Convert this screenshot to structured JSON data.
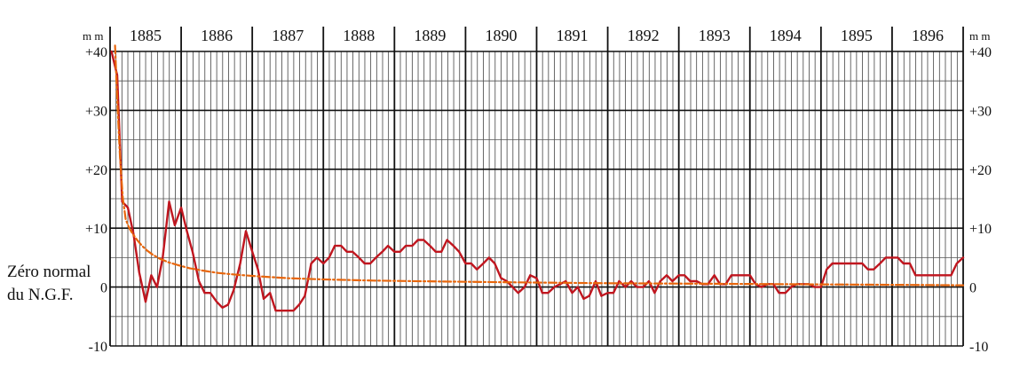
{
  "chart_data": {
    "type": "line",
    "years": [
      "1885",
      "1886",
      "1887",
      "1888",
      "1889",
      "1890",
      "1891",
      "1892",
      "1893",
      "1894",
      "1895",
      "1896"
    ],
    "xlim": [
      1885,
      1897
    ],
    "ylim": [
      -10,
      40
    ],
    "yticks": [
      40,
      30,
      20,
      10,
      0,
      -10
    ],
    "ytick_labels": [
      "+40",
      "+30",
      "+20",
      "+10",
      "0",
      "-10"
    ],
    "unit_left": "m m",
    "unit_right": "m m",
    "zero_label_line1": "Zéro normal",
    "zero_label_line2": "du N.G.F.",
    "grid": true,
    "minor_gridlines_per_year": 12,
    "series": [
      {
        "color": "#c0161f",
        "style": "solid",
        "x": [
          1885.02,
          1885.1,
          1885.17,
          1885.25,
          1885.33,
          1885.41,
          1885.5,
          1885.58,
          1885.66,
          1885.74,
          1885.83,
          1885.91,
          1886.0,
          1886.08,
          1886.16,
          1886.25,
          1886.33,
          1886.41,
          1886.5,
          1886.58,
          1886.66,
          1886.74,
          1886.83,
          1886.91,
          1887.0,
          1887.08,
          1887.16,
          1887.25,
          1887.33,
          1887.41,
          1887.5,
          1887.58,
          1887.66,
          1887.74,
          1887.83,
          1887.91,
          1888.0,
          1888.08,
          1888.16,
          1888.25,
          1888.33,
          1888.41,
          1888.5,
          1888.58,
          1888.66,
          1888.74,
          1888.83,
          1888.91,
          1889.0,
          1889.08,
          1889.16,
          1889.25,
          1889.33,
          1889.41,
          1889.5,
          1889.58,
          1889.66,
          1889.74,
          1889.83,
          1889.91,
          1890.0,
          1890.08,
          1890.16,
          1890.25,
          1890.33,
          1890.41,
          1890.5,
          1890.58,
          1890.66,
          1890.74,
          1890.83,
          1890.91,
          1891.0,
          1891.08,
          1891.16,
          1891.25,
          1891.33,
          1891.41,
          1891.5,
          1891.58,
          1891.66,
          1891.74,
          1891.83,
          1891.91,
          1892.0,
          1892.08,
          1892.16,
          1892.25,
          1892.33,
          1892.41,
          1892.5,
          1892.58,
          1892.66,
          1892.74,
          1892.83,
          1892.91,
          1893.0,
          1893.08,
          1893.16,
          1893.25,
          1893.33,
          1893.41,
          1893.5,
          1893.58,
          1893.66,
          1893.74,
          1893.83,
          1893.91,
          1894.0,
          1894.08,
          1894.16,
          1894.25,
          1894.33,
          1894.41,
          1894.5,
          1894.58,
          1894.66,
          1894.74,
          1894.83,
          1894.91,
          1895.0,
          1895.08,
          1895.16,
          1895.25,
          1895.33,
          1895.41,
          1895.5,
          1895.58,
          1895.66,
          1895.74,
          1895.83,
          1895.91,
          1896.0,
          1896.08,
          1896.16,
          1896.25,
          1896.33,
          1896.41,
          1896.5,
          1896.58,
          1896.66,
          1896.74,
          1896.83,
          1896.91,
          1897.0
        ],
        "y": [
          40.0,
          36.0,
          14.5,
          13.5,
          9.0,
          2.5,
          -2.5,
          2.0,
          0.0,
          5.0,
          14.5,
          10.5,
          13.5,
          9.5,
          6.0,
          1.0,
          -1.0,
          -1.0,
          -2.5,
          -3.5,
          -3.0,
          -0.5,
          4.0,
          9.5,
          6.0,
          3.0,
          -2.0,
          -1.0,
          -4.0,
          -4.0,
          -4.0,
          -4.0,
          -3.0,
          -1.5,
          4.0,
          5.0,
          4.0,
          5.0,
          7.0,
          7.0,
          6.0,
          6.0,
          5.0,
          4.0,
          4.0,
          5.0,
          6.0,
          7.0,
          6.0,
          6.0,
          7.0,
          7.0,
          8.0,
          8.0,
          7.0,
          6.0,
          6.0,
          8.0,
          7.0,
          6.0,
          4.0,
          4.0,
          3.0,
          4.0,
          5.0,
          4.0,
          1.5,
          1.0,
          0.0,
          -1.0,
          0.0,
          2.0,
          1.5,
          -1.0,
          -1.0,
          0.0,
          0.5,
          1.0,
          -1.0,
          0.0,
          -2.0,
          -1.5,
          1.0,
          -1.5,
          -1.0,
          -1.0,
          1.0,
          0.0,
          1.0,
          0.0,
          0.0,
          1.0,
          -1.0,
          1.0,
          2.0,
          1.0,
          2.0,
          2.0,
          1.0,
          1.0,
          0.5,
          0.5,
          2.0,
          0.5,
          0.5,
          2.0,
          2.0,
          2.0,
          2.0,
          0.5,
          0.0,
          0.5,
          0.5,
          -1.0,
          -1.0,
          0.0,
          0.5,
          0.5,
          0.5,
          0.0,
          0.0,
          3.0,
          4.0,
          4.0,
          4.0,
          4.0,
          4.0,
          4.0,
          3.0,
          3.0,
          4.0,
          5.0,
          5.0,
          5.0,
          4.0,
          4.0,
          2.0,
          2.0,
          2.0,
          2.0,
          2.0,
          2.0,
          2.0,
          4.0,
          5.0
        ]
      },
      {
        "color": "#e8660c",
        "style": "dash-dot",
        "x": [
          1885.07,
          1885.1,
          1885.14,
          1885.18,
          1885.22,
          1885.27,
          1885.32,
          1885.38,
          1885.45,
          1885.52,
          1885.6,
          1885.7,
          1885.82,
          1885.96,
          1886.12,
          1886.3,
          1886.52,
          1886.78,
          1887.1,
          1887.5,
          1888.0,
          1888.7,
          1889.6,
          1890.7,
          1892.0,
          1893.5,
          1895.0,
          1896.5,
          1897.0
        ],
        "y": [
          41.0,
          32.0,
          22.0,
          15.0,
          11.5,
          10.0,
          9.0,
          8.0,
          7.0,
          6.2,
          5.5,
          4.8,
          4.2,
          3.7,
          3.2,
          2.8,
          2.4,
          2.1,
          1.8,
          1.5,
          1.3,
          1.1,
          0.95,
          0.8,
          0.65,
          0.55,
          0.45,
          0.35,
          0.3
        ]
      }
    ]
  }
}
